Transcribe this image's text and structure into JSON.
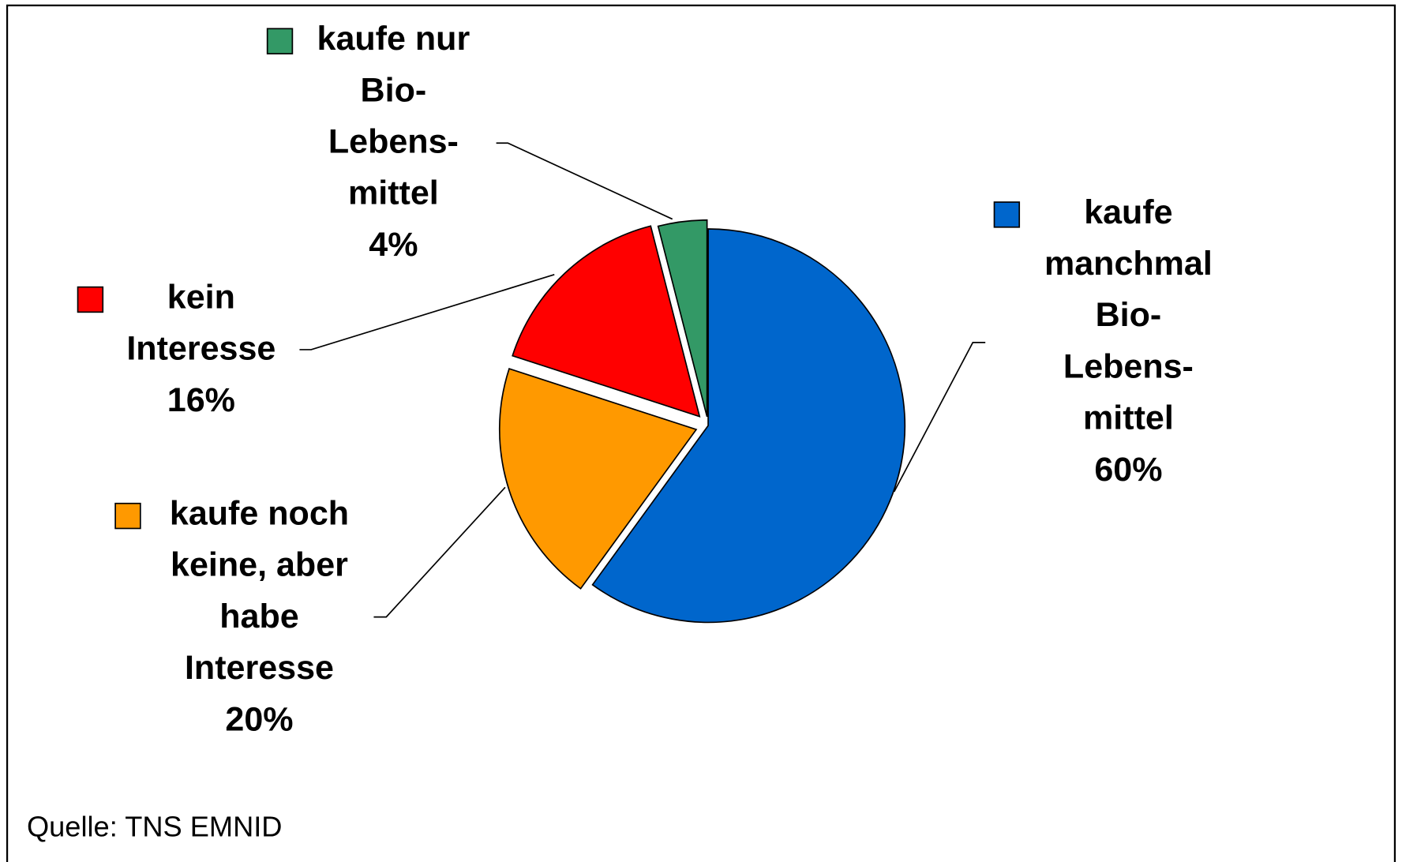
{
  "chart_data": {
    "type": "pie",
    "categories": [
      "kaufe\nmanchmal\nBio-\nLebens-\nmittel",
      "kaufe noch\nkeine, aber\nhabe\nInteresse",
      "kein\nInteresse",
      "kaufe nur\nBio-\nLebens-\nmittel"
    ],
    "values": [
      60,
      20,
      16,
      4
    ],
    "value_labels": [
      "60%",
      "20%",
      "16%",
      "4%"
    ],
    "colors": [
      "#0066cc",
      "#ff9900",
      "#ff0000",
      "#339966"
    ],
    "source": "Quelle: TNS EMNID"
  }
}
